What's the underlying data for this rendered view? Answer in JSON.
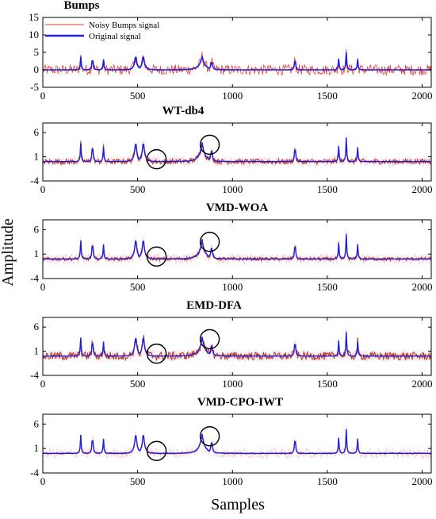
{
  "figure": {
    "ylabel": "Amplitude",
    "xlabel": "Samples"
  },
  "colors": {
    "noisy": "#e0443a",
    "noisy_band": "#f3b7c6",
    "original": "#1f1fd6",
    "denoised": "#c0392b",
    "axes": "#000000",
    "annotation_circle": "#000000"
  },
  "chart_data": [
    {
      "type": "line",
      "title": "Bumps",
      "xlim": [
        0,
        2048
      ],
      "ylim": [
        -5,
        15
      ],
      "xticks": [
        0,
        500,
        1000,
        1500,
        2000
      ],
      "yticks": [
        -5,
        0,
        5,
        10,
        15
      ],
      "legend": {
        "position": "top-left",
        "entries": [
          "Noisy Bumps signal",
          "Original signal"
        ]
      },
      "series": [
        {
          "name": "Noisy Bumps signal",
          "color": "#e0443a",
          "noise_amplitude": 1.5
        },
        {
          "name": "Original signal",
          "color": "#1f1fd6"
        }
      ],
      "bump_peaks": [
        {
          "x": 200,
          "y": 3.8
        },
        {
          "x": 262,
          "y": 5.0
        },
        {
          "x": 320,
          "y": 3.0
        },
        {
          "x": 490,
          "y": 4.8
        },
        {
          "x": 530,
          "y": 4.8
        },
        {
          "x": 840,
          "y": 4.0
        },
        {
          "x": 890,
          "y": 3.2
        },
        {
          "x": 1330,
          "y": 4.6
        },
        {
          "x": 1560,
          "y": 3.2
        },
        {
          "x": 1600,
          "y": 5.0
        },
        {
          "x": 1660,
          "y": 3.0
        }
      ]
    },
    {
      "type": "line",
      "title": "WT-db4",
      "xlim": [
        0,
        2048
      ],
      "ylim": [
        -4,
        8
      ],
      "xticks": [
        0,
        500,
        1000,
        1500,
        2000
      ],
      "yticks": [
        -4,
        1,
        6
      ],
      "series": [
        {
          "role": "denoised",
          "color": "#c0392b",
          "residual_noise": 0.55
        },
        {
          "role": "original",
          "color": "#1f1fd6"
        }
      ],
      "annotation_circles": [
        {
          "x": 600,
          "y": 0.5
        },
        {
          "x": 880,
          "y": 3.5
        }
      ]
    },
    {
      "type": "line",
      "title": "VMD-WOA",
      "xlim": [
        0,
        2048
      ],
      "ylim": [
        -4,
        8
      ],
      "xticks": [
        0,
        500,
        1000,
        1500,
        2000
      ],
      "yticks": [
        -4,
        1,
        6
      ],
      "series": [
        {
          "role": "denoised",
          "color": "#c0392b",
          "residual_noise": 0.35
        },
        {
          "role": "original",
          "color": "#1f1fd6"
        }
      ],
      "annotation_circles": [
        {
          "x": 600,
          "y": 0.5
        },
        {
          "x": 880,
          "y": 3.5
        }
      ]
    },
    {
      "type": "line",
      "title": "EMD-DFA",
      "xlim": [
        0,
        2048
      ],
      "ylim": [
        -4,
        8
      ],
      "xticks": [
        0,
        500,
        1000,
        1500,
        2000
      ],
      "yticks": [
        -4,
        1,
        6
      ],
      "series": [
        {
          "role": "denoised",
          "color": "#c0392b",
          "residual_noise": 0.85
        },
        {
          "role": "original",
          "color": "#1f1fd6"
        }
      ],
      "annotation_circles": [
        {
          "x": 600,
          "y": 0.5
        },
        {
          "x": 880,
          "y": 3.5
        }
      ]
    },
    {
      "type": "line",
      "title": "VMD-CPO-IWT",
      "xlim": [
        0,
        2048
      ],
      "ylim": [
        -4,
        8
      ],
      "xticks": [
        0,
        500,
        1000,
        1500,
        2000
      ],
      "yticks": [
        -4,
        1,
        6
      ],
      "series": [
        {
          "role": "denoised",
          "color": "#c0392b",
          "residual_noise": 0.15
        },
        {
          "role": "original",
          "color": "#1f1fd6"
        }
      ],
      "annotation_circles": [
        {
          "x": 600,
          "y": 0.5
        },
        {
          "x": 880,
          "y": 3.5
        }
      ]
    }
  ]
}
